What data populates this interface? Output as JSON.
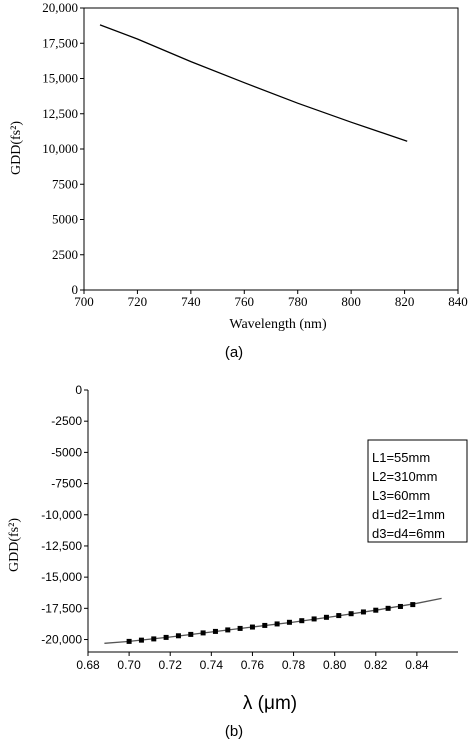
{
  "chart_data": [
    {
      "type": "line",
      "panel_label": "(a)",
      "xlabel": "Wavelength (nm)",
      "ylabel": "GDD(fs²)",
      "xlim": [
        700,
        840
      ],
      "ylim": [
        0,
        20000
      ],
      "x_ticks": [
        "700",
        "720",
        "740",
        "760",
        "780",
        "800",
        "820",
        "840"
      ],
      "y_ticks": [
        "0",
        "2500",
        "5000",
        "7500",
        "10,000",
        "12,500",
        "15,000",
        "17,500",
        "20,000"
      ],
      "x_tick_values": [
        700,
        720,
        740,
        760,
        780,
        800,
        820,
        840
      ],
      "y_tick_values": [
        0,
        2500,
        5000,
        7500,
        10000,
        12500,
        15000,
        17500,
        20000
      ],
      "series": [
        {
          "x": [
            706,
            720,
            740,
            760,
            780,
            800,
            821
          ],
          "y": [
            18800,
            17800,
            16200,
            14700,
            13250,
            11900,
            10550
          ],
          "color": "#000000"
        }
      ]
    },
    {
      "type": "line",
      "panel_label": "(b)",
      "xlabel": "λ (μm)",
      "ylabel": "GDD(fs²)",
      "xlim": [
        0.68,
        0.86
      ],
      "ylim": [
        -21000,
        0
      ],
      "x_ticks": [
        "0.68",
        "0.70",
        "0.72",
        "0.74",
        "0.76",
        "0.78",
        "0.80",
        "0.82",
        "0.84"
      ],
      "y_ticks": [
        "0",
        "-2500",
        "-5000",
        "-7500",
        "-10,000",
        "-12,500",
        "-15,000",
        "-17,500",
        "-20,000"
      ],
      "x_tick_values": [
        0.68,
        0.7,
        0.72,
        0.74,
        0.76,
        0.78,
        0.8,
        0.82,
        0.84
      ],
      "y_tick_values": [
        0,
        -2500,
        -5000,
        -7500,
        -10000,
        -12500,
        -15000,
        -17500,
        -20000
      ],
      "legend": [
        "L1=55mm",
        "L2=310mm",
        "L3=60mm",
        "d1=d2=1mm",
        "d3=d4=6mm"
      ],
      "legend_position": "top-right",
      "series": [
        {
          "style": "line",
          "color": "#555555",
          "x": [
            0.688,
            0.7,
            0.72,
            0.74,
            0.76,
            0.78,
            0.8,
            0.82,
            0.84,
            0.852
          ],
          "y": [
            -20300,
            -20150,
            -19800,
            -19400,
            -19000,
            -18600,
            -18150,
            -17650,
            -17100,
            -16700
          ]
        },
        {
          "style": "markers",
          "marker": "square",
          "color": "#000000",
          "x": [
            0.7,
            0.706,
            0.712,
            0.718,
            0.724,
            0.73,
            0.736,
            0.742,
            0.748,
            0.754,
            0.76,
            0.766,
            0.772,
            0.778,
            0.784,
            0.79,
            0.796,
            0.802,
            0.808,
            0.814,
            0.82,
            0.826,
            0.832,
            0.838
          ],
          "y": [
            -20150,
            -20050,
            -19950,
            -19830,
            -19700,
            -19590,
            -19470,
            -19350,
            -19230,
            -19110,
            -19000,
            -18870,
            -18750,
            -18620,
            -18490,
            -18350,
            -18220,
            -18080,
            -17930,
            -17790,
            -17650,
            -17500,
            -17350,
            -17200
          ]
        }
      ]
    }
  ]
}
